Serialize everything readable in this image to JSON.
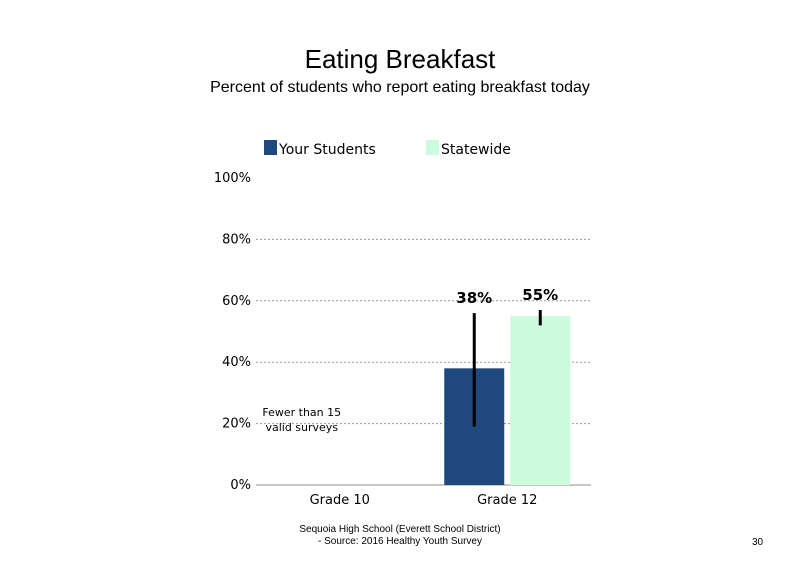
{
  "chart_data": {
    "type": "bar",
    "title": "Eating Breakfast",
    "subtitle": "Percent of students who report eating breakfast today",
    "xlabel": "",
    "ylabel": "",
    "categories": [
      "Grade 10",
      "Grade 12"
    ],
    "series": [
      {
        "name": "Your Students",
        "color": "#1f497d",
        "values": [
          null,
          38
        ],
        "labels": [
          "",
          "38%"
        ],
        "error_low": [
          null,
          19
        ],
        "error_high": [
          null,
          56
        ]
      },
      {
        "name": "Statewide",
        "color": "#ccfadc",
        "values": [
          null,
          55
        ],
        "labels": [
          "",
          "55%"
        ],
        "error_low": [
          null,
          52
        ],
        "error_high": [
          null,
          57
        ]
      }
    ],
    "ylim": [
      0,
      100
    ],
    "yticks": [
      "0%",
      "20%",
      "40%",
      "60%",
      "80%",
      "100%"
    ],
    "ytick_values": [
      0,
      20,
      40,
      60,
      80,
      100
    ],
    "grid": true,
    "legend": "top",
    "annotations": [
      {
        "category": "Grade 10",
        "text_lines": [
          "Fewer than 15",
          "valid surveys"
        ]
      }
    ]
  },
  "footer": {
    "line1": "Sequoia High School (Everett School District)",
    "line2": "- Source: 2016 Healthy Youth Survey"
  },
  "page_number": "30"
}
